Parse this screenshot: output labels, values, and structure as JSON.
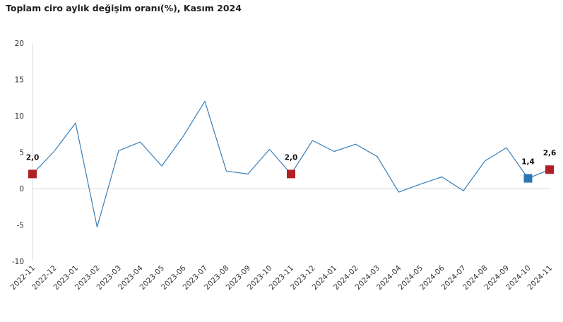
{
  "chart_data": {
    "type": "line",
    "title": "Toplam ciro aylık değişim oranı(%), Kasım 2024",
    "xlabel": "",
    "ylabel": "",
    "ylim": [
      -10,
      20
    ],
    "yticks": [
      20,
      15,
      10,
      5,
      0,
      -5,
      -10
    ],
    "categories": [
      "2022-11",
      "2022-12",
      "2023-01",
      "2023-02",
      "2023-03",
      "2023-04",
      "2023-05",
      "2023-06",
      "2023-07",
      "2023-08",
      "2023-09",
      "2023-10",
      "2023-11",
      "2023-12",
      "2024-01",
      "2024-02",
      "2024-03",
      "2024-04",
      "2024-05",
      "2024-06",
      "2024-07",
      "2024-08",
      "2024-09",
      "2024-10",
      "2024-11"
    ],
    "series": [
      {
        "values": [
          2.0,
          5.1,
          9.0,
          -5.3,
          5.2,
          6.4,
          3.1,
          7.2,
          12.0,
          2.4,
          2.0,
          5.4,
          2.0,
          6.6,
          5.1,
          6.1,
          4.4,
          -0.5,
          0.6,
          1.6,
          -0.3,
          3.8,
          5.6,
          1.4,
          2.6
        ],
        "color": "#3a7fb8"
      }
    ],
    "highlights": [
      {
        "index": 0,
        "label": "2,0",
        "color": "#b01f24"
      },
      {
        "index": 12,
        "label": "2,0",
        "color": "#b01f24"
      },
      {
        "index": 23,
        "label": "1,4",
        "color": "#2e75b6"
      },
      {
        "index": 24,
        "label": "2,6",
        "color": "#b01f24"
      }
    ],
    "grid": false
  }
}
